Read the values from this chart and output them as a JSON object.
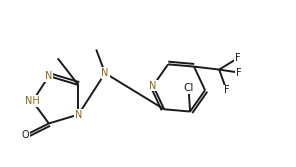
{
  "background": "#ffffff",
  "bond_color": "#1a1a1a",
  "n_color": "#8B6914",
  "lw": 1.4,
  "fs": 7.0,
  "xlim": [
    0,
    10
  ],
  "ylim": [
    0,
    5.6
  ]
}
